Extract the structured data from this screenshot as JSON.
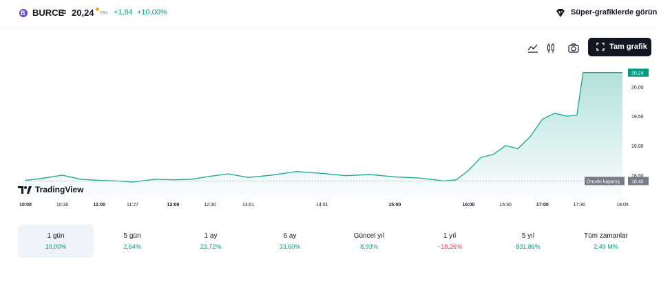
{
  "header": {
    "logo_glyph": "B",
    "symbol": "BURCE",
    "separator": "=",
    "price": "20,24",
    "currency": "TRY",
    "change": "+1,84",
    "change_pct": "+10,00%",
    "super_chart_link": "Süper-grafiklerde görün",
    "icons": [
      "chart-style-line-icon",
      "candles-icon",
      "camera-icon",
      "fullscreen-icon"
    ]
  },
  "toolbar": {
    "full_chart_label": "Tam grafik"
  },
  "branding": {
    "name": "TradingView"
  },
  "colors": {
    "up": "#089981",
    "down": "#f23645",
    "accent": "#22ab94"
  },
  "chart_data": {
    "type": "area",
    "x_labels": [
      "10:00",
      "10:30",
      "11:00",
      "11:27",
      "12:00",
      "12:30",
      "13:01",
      "14:01",
      "15:00",
      "16:00",
      "16:30",
      "17:00",
      "17:30",
      "18:05"
    ],
    "y_tick_labels": [
      "20,00",
      "19,50",
      "19,00",
      "18,50"
    ],
    "ylim": [
      18.3,
      20.4
    ],
    "series": [
      {
        "x": [
          "10:00",
          "10:12",
          "10:30",
          "10:45",
          "11:00",
          "11:15",
          "11:27",
          "11:45",
          "12:00",
          "12:15",
          "12:30",
          "12:45",
          "13:01",
          "13:20",
          "13:40",
          "14:01",
          "14:20",
          "14:40",
          "15:00",
          "15:20",
          "15:40",
          "15:50",
          "16:00",
          "16:10",
          "16:20",
          "16:30",
          "16:40",
          "16:50",
          "17:00",
          "17:10",
          "17:20",
          "17:28",
          "17:33",
          "18:05"
        ],
        "y": [
          18.41,
          18.44,
          18.5,
          18.43,
          18.41,
          18.4,
          18.38,
          18.43,
          18.42,
          18.43,
          18.48,
          18.52,
          18.46,
          18.5,
          18.56,
          18.53,
          18.49,
          18.51,
          18.47,
          18.45,
          18.4,
          18.42,
          18.58,
          18.8,
          18.85,
          19.0,
          18.95,
          19.15,
          19.45,
          19.55,
          19.5,
          19.52,
          20.24,
          20.24
        ]
      }
    ],
    "markers": [
      {
        "label": "Önceki kapanış",
        "value": "18,40"
      },
      {
        "label": "last",
        "value": "20,24"
      }
    ]
  },
  "periods": [
    {
      "label": "1 gün",
      "value": "10,00%",
      "dir": "up",
      "active": true
    },
    {
      "label": "5 gün",
      "value": "2,64%",
      "dir": "up",
      "active": false
    },
    {
      "label": "1 ay",
      "value": "23,72%",
      "dir": "up",
      "active": false
    },
    {
      "label": "6 ay",
      "value": "33,60%",
      "dir": "up",
      "active": false
    },
    {
      "label": "Güncel yıl",
      "value": "8,93%",
      "dir": "up",
      "active": false
    },
    {
      "label": "1 yıl",
      "value": "−18,26%",
      "dir": "down",
      "active": false
    },
    {
      "label": "5 yıl",
      "value": "831,86%",
      "dir": "up",
      "active": false
    },
    {
      "label": "Tüm zamanlar",
      "value": "2,49 M%",
      "dir": "up",
      "active": false
    }
  ]
}
